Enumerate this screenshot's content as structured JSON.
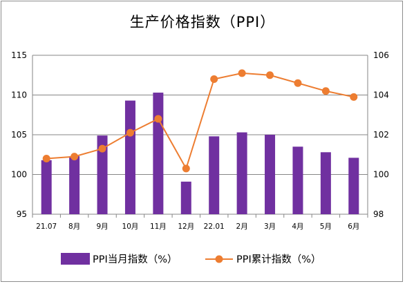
{
  "chart_data": {
    "type": "bar",
    "title": "生产价格指数（PPI）",
    "categories": [
      "21.07",
      "8月",
      "9月",
      "10月",
      "11月",
      "12月",
      "22.01",
      "2月",
      "3月",
      "4月",
      "5月",
      "6月"
    ],
    "series": [
      {
        "name": "PPI当月指数（%）",
        "type": "bar",
        "axis": "left",
        "color": "#7030a0",
        "values": [
          101.8,
          102.3,
          104.9,
          109.3,
          110.3,
          99.1,
          104.8,
          105.3,
          105.0,
          103.5,
          102.8,
          102.1
        ]
      },
      {
        "name": "PPI累计指数（%）",
        "type": "line",
        "axis": "right",
        "color": "#ed7d31",
        "values": [
          100.8,
          100.9,
          101.3,
          102.1,
          102.8,
          100.3,
          104.8,
          105.1,
          105.0,
          104.6,
          104.2,
          103.9
        ]
      }
    ],
    "y_left": {
      "min": 95,
      "max": 115,
      "ticks": [
        95,
        100,
        105,
        110,
        115
      ]
    },
    "y_right": {
      "min": 98,
      "max": 106,
      "ticks": [
        98,
        100,
        102,
        104,
        106
      ]
    },
    "grid": true,
    "legend_position": "bottom"
  }
}
